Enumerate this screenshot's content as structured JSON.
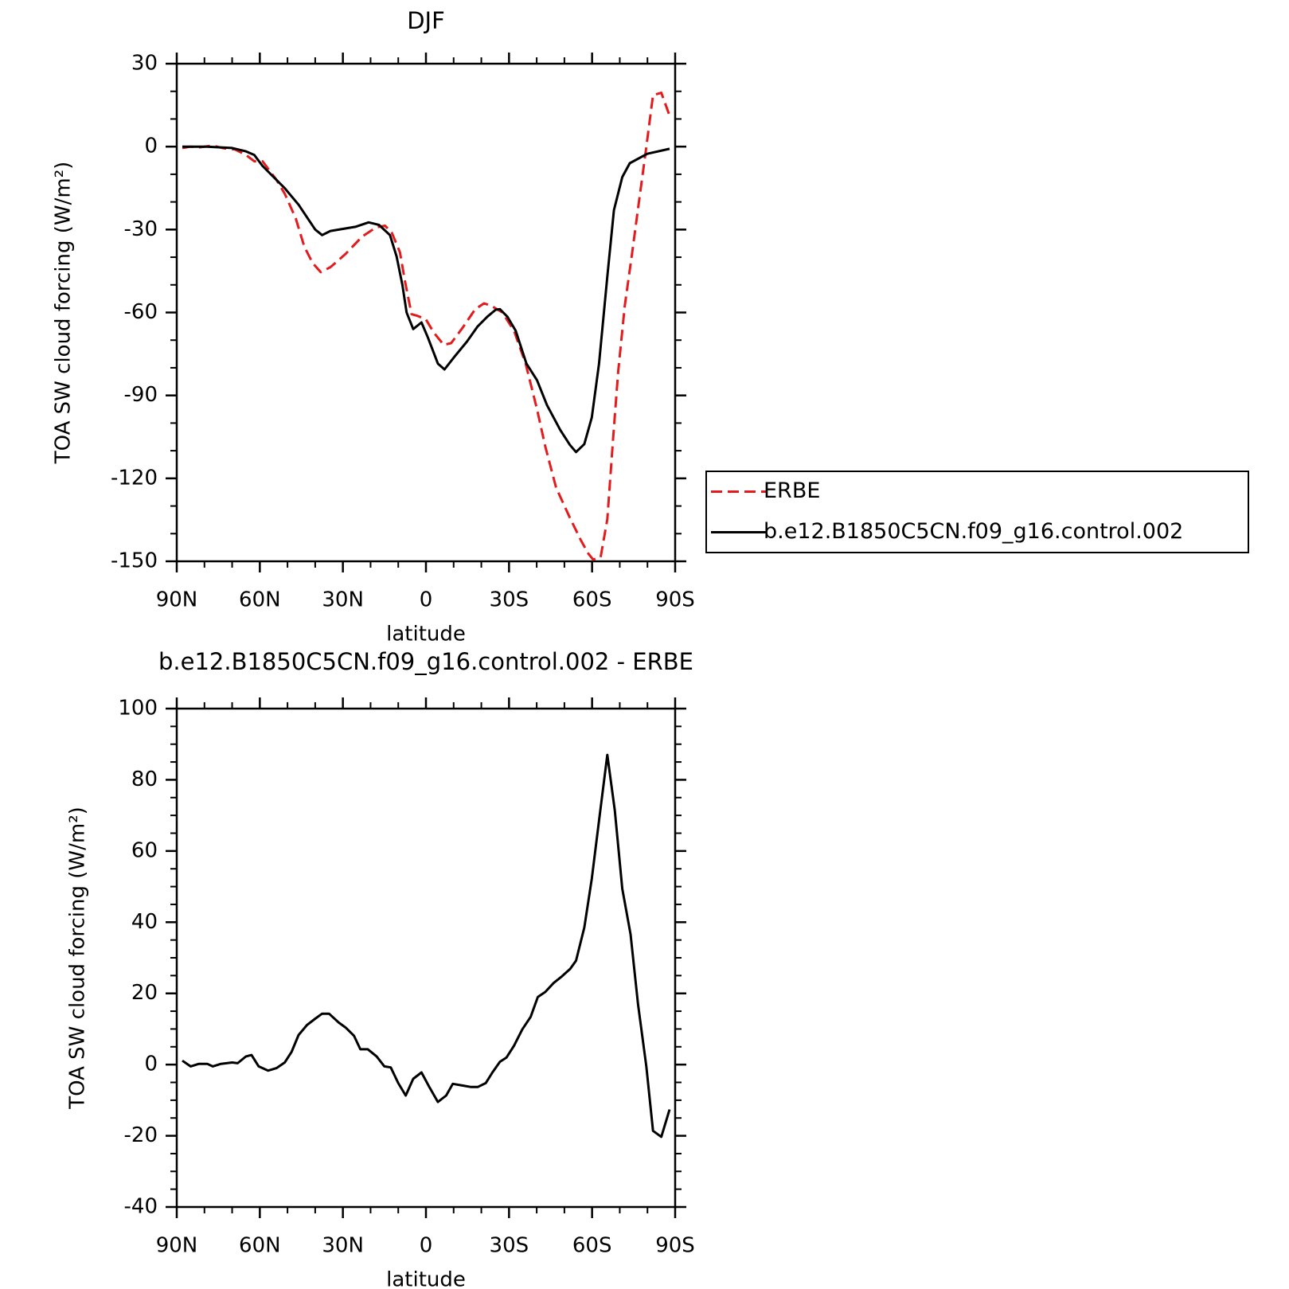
{
  "chart_data": [
    {
      "type": "line",
      "title": "DJF",
      "xlabel": "latitude",
      "ylabel": "TOA SW cloud forcing (W/m²)",
      "xlim": [
        90,
        -90
      ],
      "xticks": [
        {
          "value": 90,
          "label": "90N"
        },
        {
          "value": 60,
          "label": "60N"
        },
        {
          "value": 30,
          "label": "30N"
        },
        0,
        {
          "value": -30,
          "label": "30S"
        },
        {
          "value": -60,
          "label": "60S"
        },
        {
          "value": -90,
          "label": "90S"
        }
      ],
      "ylim": [
        -150,
        30
      ],
      "yticks": [
        -150,
        -120,
        -90,
        -60,
        -30,
        0,
        30
      ],
      "legend": "outside-right",
      "series": [
        {
          "name": "ERBE",
          "color": "#e41a1c",
          "line_style": "dashed",
          "x": [
            88,
            85,
            82,
            77,
            73,
            69,
            65,
            62,
            59,
            54,
            51,
            47,
            44,
            41,
            38,
            34.5,
            29,
            23,
            18,
            14.8,
            12.4,
            9.4,
            7.6,
            5.2,
            3.1,
            0.1,
            -2.8,
            -6.4,
            -9.1,
            -13.3,
            -17.8,
            -21,
            -23.7,
            -27.6,
            -31.8,
            -36,
            -40.1,
            -43.1,
            -47,
            -52.1,
            -56,
            -58.7,
            -60.4,
            -63.1,
            -65.5,
            -67.6,
            -69.4,
            -71.8,
            -74.5,
            -76.9,
            -79.3,
            -82,
            -85,
            -88
          ],
          "values": [
            -0.5,
            0,
            -0.3,
            0.4,
            -0.6,
            -1,
            -3,
            -5.3,
            -5.3,
            -12,
            -17,
            -26,
            -36,
            -42,
            -45.4,
            -43.6,
            -38.8,
            -32.5,
            -29.2,
            -28.6,
            -31,
            -38.2,
            -48.6,
            -60.6,
            -61.2,
            -62.4,
            -67.2,
            -71.7,
            -71.1,
            -65.4,
            -58.8,
            -56.7,
            -57.6,
            -60,
            -66.6,
            -78.5,
            -95,
            -108.5,
            -123.4,
            -134.5,
            -142.5,
            -147.3,
            -149.4,
            -148.5,
            -134.8,
            -105.5,
            -81.5,
            -57.6,
            -38.2,
            -20.2,
            -2.3,
            18.6,
            19.5,
            11.2
          ]
        },
        {
          "name": "b.e12.B1850C5CN.f09_g16.control.002",
          "color": "#000000",
          "line_style": "solid",
          "x": [
            88,
            79,
            70,
            65,
            62,
            59,
            55,
            51,
            46,
            40,
            37.5,
            34.5,
            25.5,
            20.7,
            17,
            13,
            10.6,
            8.5,
            7,
            4.6,
            1.6,
            -0.7,
            -4.3,
            -6.7,
            -10.3,
            -14.8,
            -18.7,
            -22.2,
            -25.2,
            -26.7,
            -29.4,
            -32.4,
            -36.3,
            -40.1,
            -43.7,
            -48.5,
            -52,
            -54.2,
            -57.2,
            -59.9,
            -62.5,
            -65.5,
            -67.9,
            -70.9,
            -73.6,
            -79.9,
            -88
          ],
          "values": [
            0,
            0,
            -0.5,
            -1.7,
            -3,
            -7,
            -11,
            -15,
            -21,
            -30,
            -32,
            -30.5,
            -29,
            -27.4,
            -28.3,
            -32,
            -39.7,
            -50,
            -60,
            -66,
            -63.6,
            -69,
            -78.5,
            -80.6,
            -76,
            -70.5,
            -65,
            -61.5,
            -59,
            -58.8,
            -61.5,
            -66.6,
            -78.5,
            -84.5,
            -93.5,
            -102.5,
            -107.9,
            -110.5,
            -107.6,
            -98,
            -78.5,
            -47,
            -23,
            -11,
            -6,
            -2.6,
            -0.8
          ]
        }
      ]
    },
    {
      "type": "line",
      "title": "b.e12.B1850C5CN.f09_g16.control.002 - ERBE",
      "xlabel": "latitude",
      "ylabel": "TOA SW cloud forcing (W/m²)",
      "xlim": [
        90,
        -90
      ],
      "xticks": [
        {
          "value": 90,
          "label": "90N"
        },
        {
          "value": 60,
          "label": "60N"
        },
        {
          "value": 30,
          "label": "30N"
        },
        0,
        {
          "value": -30,
          "label": "30S"
        },
        {
          "value": -60,
          "label": "60S"
        },
        {
          "value": -90,
          "label": "90S"
        }
      ],
      "ylim": [
        -40,
        100
      ],
      "yticks": [
        -40,
        -20,
        0,
        20,
        40,
        60,
        80,
        100
      ],
      "series": [
        {
          "color": "#000000",
          "line_style": "solid",
          "x": [
            88,
            85,
            82,
            79,
            77,
            74,
            70,
            68,
            65,
            63,
            60.4,
            57,
            54,
            51,
            48.5,
            46,
            43,
            40,
            37.5,
            35,
            31.5,
            29,
            26,
            23.7,
            21,
            17.8,
            15,
            12.7,
            10,
            7.3,
            4.6,
            1.6,
            -1.3,
            -4.3,
            -7.3,
            -9.7,
            -13.3,
            -16.3,
            -18.7,
            -21.6,
            -24,
            -26.7,
            -29.1,
            -31.8,
            -34.8,
            -37.8,
            -40.4,
            -43.1,
            -46.1,
            -49.1,
            -52.1,
            -54.2,
            -57.2,
            -59.9,
            -62.6,
            -65.5,
            -68.2,
            -70.9,
            -73.9,
            -76.6,
            -79.6,
            -82,
            -85,
            -88
          ],
          "values": [
            1.1,
            -0.5,
            0.2,
            0.2,
            -0.5,
            0.2,
            0.6,
            0.4,
            2.3,
            2.7,
            -0.5,
            -1.7,
            -1,
            0.6,
            3.6,
            8.3,
            11.1,
            12.9,
            14.3,
            14.3,
            11.8,
            10.4,
            8.1,
            4.3,
            4.3,
            2.3,
            -0.5,
            -0.8,
            -5.2,
            -8.7,
            -4,
            -2.2,
            -6.4,
            -10.5,
            -8.7,
            -5.4,
            -5.9,
            -6.3,
            -6.3,
            -5.2,
            -2.2,
            0.8,
            2,
            5.3,
            9.9,
            13.4,
            19,
            20.4,
            22.9,
            24.8,
            26.9,
            29.2,
            38.5,
            52.2,
            69.1,
            87,
            71.4,
            49.4,
            36.6,
            16.9,
            -0.5,
            -18.6,
            -20.3,
            -12.6
          ]
        }
      ]
    }
  ]
}
